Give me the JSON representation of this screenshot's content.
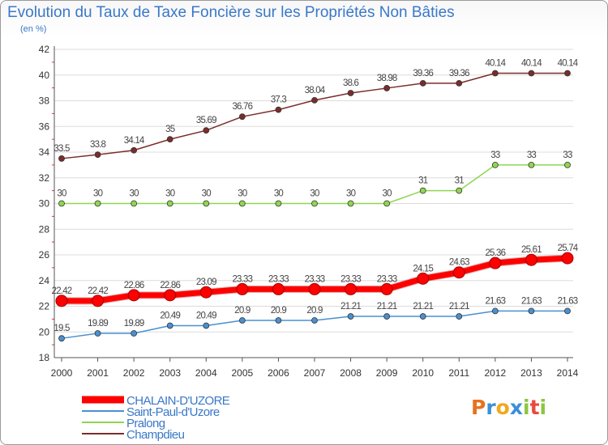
{
  "title": "Evolution du Taux de Taxe Foncière sur les Propriétés Non Bâties",
  "subtitle": "(en %)",
  "logo": {
    "text": "Proxiti",
    "letter_colors": [
      "#e8711e",
      "#3a8fd8",
      "#f0a81e",
      "#3a8fd8",
      "#8cc63f",
      "#e84b3c",
      "#8cc63f"
    ]
  },
  "chart_data": {
    "type": "line",
    "title": "Evolution du Taux de Taxe Foncière sur les Propriétés Non Bâties",
    "ylabel": "(en %)",
    "xlabel": "",
    "ylim": [
      18,
      42
    ],
    "yticks": [
      "18",
      "20",
      "22",
      "24",
      "26",
      "28",
      "30",
      "32",
      "34",
      "36",
      "38",
      "40",
      "42"
    ],
    "categories": [
      "2000",
      "2001",
      "2002",
      "2003",
      "2004",
      "2005",
      "2006",
      "2007",
      "2008",
      "2009",
      "2010",
      "2011",
      "2012",
      "2013",
      "2014"
    ],
    "grid": "horizontal",
    "legend_position": "bottom-left",
    "series": [
      {
        "name": "Champdieu",
        "color": "#7b2c2c",
        "weight": "thin",
        "values": [
          33.5,
          33.8,
          34.14,
          35,
          35.69,
          36.76,
          37.3,
          38.04,
          38.6,
          38.98,
          39.36,
          39.36,
          40.14,
          40.14,
          40.14
        ],
        "labels": [
          "33.5",
          "33.8",
          "34.14",
          "35",
          "35.69",
          "36.76",
          "37.3",
          "38.04",
          "38.6",
          "38.98",
          "39.36",
          "39.36",
          "40.14",
          "40.14",
          "40.14"
        ]
      },
      {
        "name": "Pralong",
        "color": "#8fd650",
        "weight": "thin",
        "values": [
          30,
          30,
          30,
          30,
          30,
          30,
          30,
          30,
          30,
          30,
          31,
          31,
          33,
          33,
          33
        ],
        "labels": [
          "30",
          "30",
          "30",
          "30",
          "30",
          "30",
          "30",
          "30",
          "30",
          "30",
          "31",
          "31",
          "33",
          "33",
          "33"
        ]
      },
      {
        "name": "CHALAIN-D'UZORE",
        "color": "#ff0000",
        "weight": "thick",
        "values": [
          22.42,
          22.42,
          22.86,
          22.86,
          23.09,
          23.33,
          23.33,
          23.33,
          23.33,
          23.33,
          24.15,
          24.63,
          25.36,
          25.61,
          25.74
        ],
        "labels": [
          "22.42",
          "22.42",
          "22.86",
          "22.86",
          "23.09",
          "23.33",
          "23.33",
          "23.33",
          "23.33",
          "23.33",
          "24.15",
          "24.63",
          "25.36",
          "25.61",
          "25.74"
        ]
      },
      {
        "name": "Saint-Paul-d'Uzore",
        "color": "#4a90d0",
        "weight": "thin",
        "values": [
          19.5,
          19.89,
          19.89,
          20.49,
          20.49,
          20.9,
          20.9,
          20.9,
          21.21,
          21.21,
          21.21,
          21.21,
          21.63,
          21.63,
          21.63
        ],
        "labels": [
          "19.5",
          "19.89",
          "19.89",
          "20.49",
          "20.49",
          "20.9",
          "20.9",
          "20.9",
          "21.21",
          "21.21",
          "21.21",
          "21.21",
          "21.63",
          "21.63",
          "21.63"
        ]
      }
    ],
    "legend": [
      "CHALAIN-D'UZORE",
      "Saint-Paul-d'Uzore",
      "Pralong",
      "Champdieu"
    ]
  }
}
